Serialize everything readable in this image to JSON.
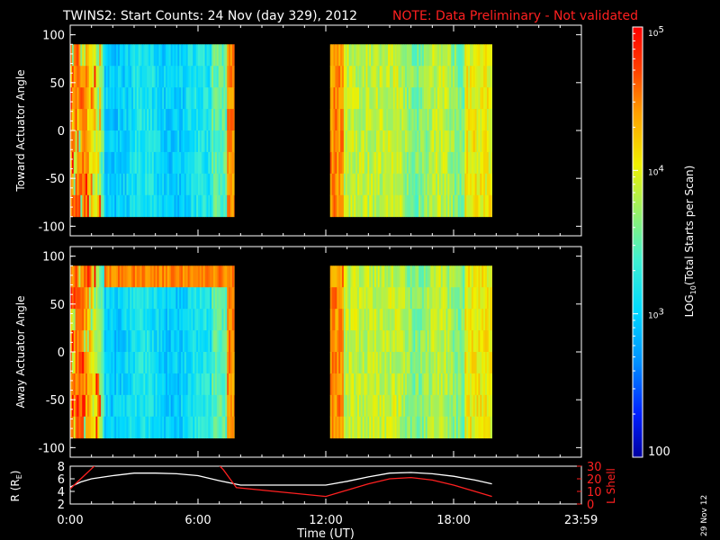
{
  "title": {
    "main": "TWINS2: Start Counts: 24 Nov (day 329), 2012",
    "note": "NOTE: Data Preliminary - Not validated",
    "note_color": "#ff2020"
  },
  "date_stamp": "29 Nov 12",
  "colors": {
    "background": "#000000",
    "foreground": "#ffffff",
    "accent_red": "#ff2020",
    "r_line": "#ffffff",
    "l_line": "#ff2020"
  },
  "chart_data": [
    {
      "type": "heatmap",
      "ylabel": "Toward Actuator Angle",
      "ylim": [
        -110,
        110
      ],
      "yticks": [
        -100,
        -50,
        0,
        50,
        100
      ],
      "angle_range": [
        -90,
        90
      ],
      "time_range_hours": [
        0,
        24
      ],
      "segments_hours": [
        [
          0,
          7.7
        ],
        [
          12.2,
          19.8
        ]
      ],
      "colorscale": "rainbow log"
    },
    {
      "type": "heatmap",
      "ylabel": "Away Actuator Angle",
      "ylim": [
        -110,
        110
      ],
      "yticks": [
        -100,
        -50,
        0,
        50,
        100
      ],
      "angle_range": [
        -90,
        90
      ],
      "time_range_hours": [
        0,
        24
      ],
      "segments_hours": [
        [
          0,
          7.7
        ],
        [
          12.2,
          19.8
        ]
      ],
      "colorscale": "rainbow log"
    },
    {
      "type": "line",
      "xlabel": "Time (UT)",
      "x_ticks": [
        "0:00",
        "6:00",
        "12:00",
        "18:00",
        "23:59"
      ],
      "x_tick_hours": [
        0,
        6,
        12,
        18,
        23.983
      ],
      "left_axis": {
        "label": "R (R",
        "label_sub": "E",
        "label_tail": ")",
        "ylim": [
          2,
          8
        ],
        "yticks": [
          "2",
          "4",
          "6",
          "8"
        ]
      },
      "right_axis": {
        "label": "L Shell",
        "ylim": [
          0,
          30
        ],
        "yticks": [
          "0",
          "10",
          "20",
          "30"
        ]
      },
      "series": [
        {
          "axis": "left",
          "color": "#ffffff",
          "x": [
            0,
            0.5,
            1,
            2,
            3,
            4,
            5,
            6,
            7,
            8,
            9,
            10,
            11,
            12,
            13,
            14,
            15,
            16,
            17,
            18,
            19,
            19.8
          ],
          "y": [
            4.7,
            5.5,
            6.0,
            6.5,
            6.9,
            6.9,
            6.8,
            6.5,
            5.7,
            5.0,
            5.0,
            5.0,
            5.0,
            5.0,
            5.6,
            6.3,
            6.9,
            7.0,
            6.8,
            6.4,
            5.8,
            5.2
          ]
        },
        {
          "axis": "right",
          "x": [
            0,
            0.5,
            1,
            1.5,
            6.7,
            7.2,
            7.8,
            12,
            13,
            14,
            15,
            16,
            17,
            18,
            19,
            19.8
          ],
          "y": [
            12,
            20,
            28,
            36,
            36,
            27,
            13,
            6,
            11,
            16,
            20,
            21,
            19,
            15,
            10,
            6
          ]
        }
      ]
    }
  ],
  "colorbar": {
    "label": "LOG",
    "label_sub": "10",
    "label_tail": "(Total Starts per Scan)",
    "ticks": [
      {
        "text": "100",
        "sup": ""
      },
      {
        "text": "10",
        "sup": "3"
      },
      {
        "text": "10",
        "sup": "4"
      },
      {
        "text": "10",
        "sup": "5"
      }
    ]
  }
}
